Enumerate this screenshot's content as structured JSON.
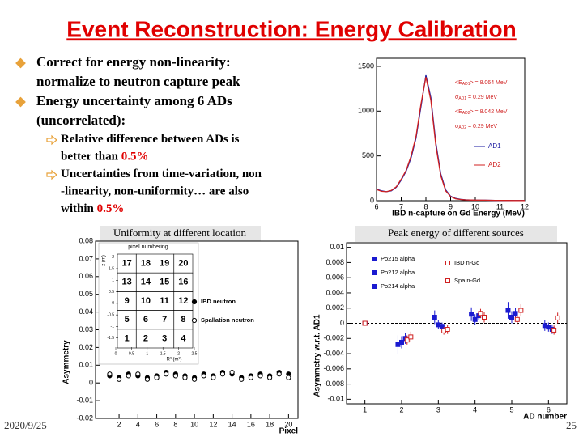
{
  "slide": {
    "title": "Event Reconstruction: Energy Calibration",
    "bullets": [
      {
        "lines": [
          "Correct for energy non-linearity:",
          "normalize to neutron capture peak"
        ]
      },
      {
        "lines": [
          "Energy uncertainty among 6 ADs",
          "(uncorrelated):"
        ],
        "sub": [
          {
            "lines": [
              [
                {
                  "text": "Relative difference between ADs is"
                }
              ],
              [
                {
                  "text": "better than "
                },
                {
                  "text": "0.5%",
                  "color": "#e00000"
                }
              ]
            ]
          },
          {
            "lines": [
              [
                {
                  "text": "Uncertainties from time-variation, non"
                }
              ],
              [
                {
                  "text": "-linearity, non-uniformity… are also"
                }
              ],
              [
                {
                  "text": "within "
                },
                {
                  "text": "0.5%",
                  "color": "#e00000"
                }
              ]
            ]
          }
        ]
      }
    ],
    "captions": [
      "Uniformity at different location",
      "Peak energy of different sources"
    ],
    "date": "2020/9/25",
    "page": "25"
  },
  "chart_data": [
    {
      "type": "line",
      "xlabel": "IBD n-capture on Gd Energy (MeV)",
      "xlim": [
        6,
        12
      ],
      "ylim": [
        0,
        1590
      ],
      "xticks": [
        6,
        7,
        8,
        9,
        10,
        11,
        12
      ],
      "yticks": [
        0,
        500,
        1000,
        1500
      ],
      "x": [
        6,
        6.2,
        6.4,
        6.6,
        6.8,
        7,
        7.2,
        7.4,
        7.6,
        7.8,
        8,
        8.2,
        8.4,
        8.6,
        8.8,
        9,
        9.2,
        9.4,
        9.6,
        9.8,
        10,
        10.4,
        10.8,
        11.2,
        11.6,
        12
      ],
      "series": [
        {
          "name": "AD1",
          "color": "#1a1aa0",
          "values": [
            130,
            110,
            100,
            110,
            150,
            230,
            330,
            480,
            700,
            1050,
            1400,
            1150,
            650,
            300,
            120,
            50,
            25,
            15,
            10,
            8,
            6,
            5,
            4,
            3,
            2,
            2
          ]
        },
        {
          "name": "AD2",
          "color": "#d02020",
          "values": [
            125,
            105,
            100,
            115,
            155,
            240,
            340,
            500,
            720,
            1080,
            1380,
            1120,
            620,
            280,
            110,
            45,
            22,
            14,
            9,
            7,
            6,
            5,
            4,
            3,
            2,
            2
          ]
        }
      ],
      "annotations": [
        {
          "parts": [
            "<E",
            "AD1",
            "> = 8.064 MeV"
          ],
          "color": "#d02020"
        },
        {
          "parts": [
            "σ",
            "AD1",
            " = 0.29 MeV"
          ],
          "color": "#d02020"
        },
        {
          "parts": [
            "<E",
            "AD2",
            "> = 8.042 MeV"
          ],
          "color": "#d02020"
        },
        {
          "parts": [
            "σ",
            "AD2",
            " = 0.29 MeV"
          ],
          "color": "#d02020"
        }
      ]
    },
    {
      "type": "scatter",
      "ylabel": "Asymmetry",
      "xlabel": "Pixel",
      "xlim": [
        -0.5,
        21
      ],
      "ylim": [
        -0.02,
        0.08
      ],
      "xticks": [
        2,
        4,
        6,
        8,
        10,
        12,
        14,
        16,
        18,
        20
      ],
      "yticks": [
        -0.02,
        -0.01,
        0,
        0.01,
        0.02,
        0.03,
        0.04,
        0.05,
        0.06,
        0.07,
        0.08
      ],
      "x": [
        1,
        2,
        3,
        4,
        5,
        6,
        7,
        8,
        9,
        10,
        11,
        12,
        13,
        14,
        15,
        16,
        17,
        18,
        19,
        20
      ],
      "series": [
        {
          "name": "IBD neutron",
          "color": "#000000",
          "marker": "filled-circle",
          "values": [
            0.004,
            0.003,
            0.005,
            0.004,
            0.003,
            0.004,
            0.006,
            0.005,
            0.004,
            0.003,
            0.005,
            0.004,
            0.006,
            0.005,
            0.003,
            0.004,
            0.005,
            0.004,
            0.006,
            0.005
          ]
        },
        {
          "name": "Spallation neutron",
          "color": "#000000",
          "marker": "open-circle",
          "values": [
            0.005,
            0.002,
            0.004,
            0.005,
            0.002,
            0.003,
            0.005,
            0.004,
            0.003,
            0.002,
            0.004,
            0.003,
            0.005,
            0.006,
            0.002,
            0.003,
            0.004,
            0.003,
            0.005,
            0.003
          ]
        }
      ],
      "inset": {
        "title": "pixel numbering",
        "xlabel": "R² (m²)",
        "ylabel": "z (m)",
        "xlim": [
          0,
          2.5
        ],
        "ylim": [
          -2,
          2.2
        ],
        "xticks": [
          0,
          0.5,
          1,
          1.5,
          2,
          2.5
        ],
        "yticks": [
          -1.5,
          -1,
          -0.5,
          0,
          0.5,
          1,
          1.5,
          2
        ],
        "cells": [
          [
            17,
            18,
            19,
            20
          ],
          [
            13,
            14,
            15,
            16
          ],
          [
            9,
            10,
            11,
            12
          ],
          [
            5,
            6,
            7,
            8
          ],
          [
            1,
            2,
            3,
            4
          ]
        ]
      }
    },
    {
      "type": "scatter",
      "ylabel": "Asymmetry w.r.t. AD1",
      "xlabel": "AD number",
      "xlim": [
        0.5,
        6.5
      ],
      "ylim": [
        -0.0106,
        0.0106
      ],
      "xticks": [
        1,
        2,
        3,
        4,
        5,
        6
      ],
      "yticks": [
        -0.01,
        -0.008,
        -0.006,
        -0.004,
        -0.002,
        0,
        0.002,
        0.004,
        0.006,
        0.008,
        0.01
      ],
      "series": [
        {
          "name": "Po215 alpha",
          "color": "#1a1ad0",
          "marker": "filled-square",
          "x": [
            1,
            1.9,
            2.9,
            3.9,
            4.9,
            5.9
          ],
          "values": [
            0,
            -0.0028,
            0.0008,
            0.0012,
            0.0017,
            -0.0003
          ],
          "errors": [
            0.0002,
            0.0012,
            0.0009,
            0.0009,
            0.0011,
            0.0007
          ]
        },
        {
          "name": "Po212 alpha",
          "color": "#1a1ad0",
          "marker": "filled-square",
          "x": [
            1,
            2,
            3,
            4,
            5,
            6
          ],
          "values": [
            0,
            -0.0025,
            -0.0002,
            0.0005,
            0.0008,
            -0.0005
          ],
          "errors": [
            0.0002,
            0.0008,
            0.0006,
            0.0007,
            0.0008,
            0.0006
          ]
        },
        {
          "name": "Po214 alpha",
          "color": "#1a1ad0",
          "marker": "filled-square",
          "x": [
            1,
            2.1,
            3.1,
            4.1,
            5.1,
            6.1
          ],
          "values": [
            0,
            -0.002,
            -0.0004,
            0.001,
            0.0013,
            -0.0008
          ],
          "errors": [
            0.0002,
            0.0007,
            0.0005,
            0.0006,
            0.0007,
            0.0006
          ]
        },
        {
          "name": "IBD n-Gd",
          "color": "#d02020",
          "marker": "open-square",
          "x": [
            1,
            2.15,
            3.15,
            4.15,
            5.15,
            6.15
          ],
          "values": [
            0,
            -0.0022,
            -0.001,
            0.0013,
            0.0005,
            -0.0009
          ],
          "errors": [
            0.0002,
            0.0006,
            0.0005,
            0.0006,
            0.0006,
            0.0006
          ]
        },
        {
          "name": "Spa n-Gd",
          "color": "#d02020",
          "marker": "open-square",
          "x": [
            1,
            2.25,
            3.25,
            4.25,
            5.25,
            6.25
          ],
          "values": [
            0,
            -0.0018,
            -0.0008,
            0.0008,
            0.0017,
            0.0007
          ],
          "errors": [
            0.0002,
            0.0007,
            0.0006,
            0.0007,
            0.0008,
            0.0007
          ]
        }
      ]
    }
  ]
}
